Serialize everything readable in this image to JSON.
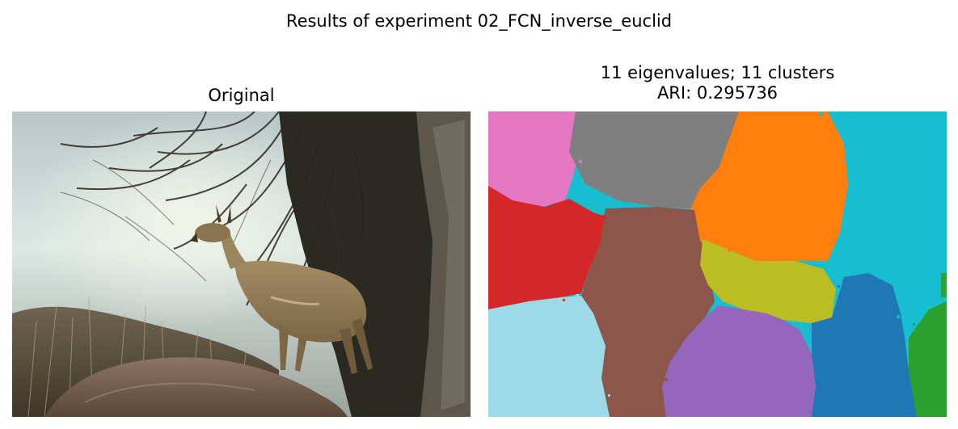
{
  "figure": {
    "suptitle": "Results of experiment 02_FCN_inverse_euclid"
  },
  "left_panel": {
    "title": "Original",
    "image": "photo-antelope-on-rock"
  },
  "right_panel": {
    "title_line1": "11 eigenvalues; 11 clusters",
    "title_line2": "ARI: 0.295736",
    "image": "segmentation-cluster-map",
    "cluster_colors": [
      "#e377c2",
      "#7f7f7f",
      "#ff7f0e",
      "#17becf",
      "#d62728",
      "#8c564b",
      "#bcbd22",
      "#9edae5",
      "#9467bd",
      "#1f77b4",
      "#2ca02c"
    ]
  }
}
